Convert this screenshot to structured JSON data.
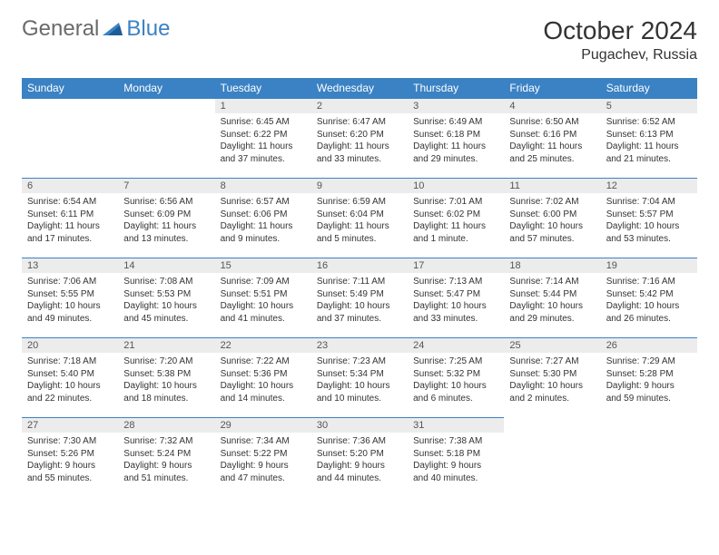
{
  "brand": {
    "part1": "General",
    "part2": "Blue"
  },
  "title": "October 2024",
  "location": "Pugachev, Russia",
  "colors": {
    "header_bg": "#3b82c4",
    "header_fg": "#ffffff",
    "daynum_bg": "#ececec",
    "text": "#333333",
    "logo_gray": "#6a6a6a",
    "logo_blue": "#3b82c4",
    "rule": "#3b82c4"
  },
  "layout": {
    "first_day_column": 2,
    "days_in_month": 31
  },
  "weekdays": [
    "Sunday",
    "Monday",
    "Tuesday",
    "Wednesday",
    "Thursday",
    "Friday",
    "Saturday"
  ],
  "days": [
    {
      "n": 1,
      "sunrise": "6:45 AM",
      "sunset": "6:22 PM",
      "daylight": "11 hours and 37 minutes."
    },
    {
      "n": 2,
      "sunrise": "6:47 AM",
      "sunset": "6:20 PM",
      "daylight": "11 hours and 33 minutes."
    },
    {
      "n": 3,
      "sunrise": "6:49 AM",
      "sunset": "6:18 PM",
      "daylight": "11 hours and 29 minutes."
    },
    {
      "n": 4,
      "sunrise": "6:50 AM",
      "sunset": "6:16 PM",
      "daylight": "11 hours and 25 minutes."
    },
    {
      "n": 5,
      "sunrise": "6:52 AM",
      "sunset": "6:13 PM",
      "daylight": "11 hours and 21 minutes."
    },
    {
      "n": 6,
      "sunrise": "6:54 AM",
      "sunset": "6:11 PM",
      "daylight": "11 hours and 17 minutes."
    },
    {
      "n": 7,
      "sunrise": "6:56 AM",
      "sunset": "6:09 PM",
      "daylight": "11 hours and 13 minutes."
    },
    {
      "n": 8,
      "sunrise": "6:57 AM",
      "sunset": "6:06 PM",
      "daylight": "11 hours and 9 minutes."
    },
    {
      "n": 9,
      "sunrise": "6:59 AM",
      "sunset": "6:04 PM",
      "daylight": "11 hours and 5 minutes."
    },
    {
      "n": 10,
      "sunrise": "7:01 AM",
      "sunset": "6:02 PM",
      "daylight": "11 hours and 1 minute."
    },
    {
      "n": 11,
      "sunrise": "7:02 AM",
      "sunset": "6:00 PM",
      "daylight": "10 hours and 57 minutes."
    },
    {
      "n": 12,
      "sunrise": "7:04 AM",
      "sunset": "5:57 PM",
      "daylight": "10 hours and 53 minutes."
    },
    {
      "n": 13,
      "sunrise": "7:06 AM",
      "sunset": "5:55 PM",
      "daylight": "10 hours and 49 minutes."
    },
    {
      "n": 14,
      "sunrise": "7:08 AM",
      "sunset": "5:53 PM",
      "daylight": "10 hours and 45 minutes."
    },
    {
      "n": 15,
      "sunrise": "7:09 AM",
      "sunset": "5:51 PM",
      "daylight": "10 hours and 41 minutes."
    },
    {
      "n": 16,
      "sunrise": "7:11 AM",
      "sunset": "5:49 PM",
      "daylight": "10 hours and 37 minutes."
    },
    {
      "n": 17,
      "sunrise": "7:13 AM",
      "sunset": "5:47 PM",
      "daylight": "10 hours and 33 minutes."
    },
    {
      "n": 18,
      "sunrise": "7:14 AM",
      "sunset": "5:44 PM",
      "daylight": "10 hours and 29 minutes."
    },
    {
      "n": 19,
      "sunrise": "7:16 AM",
      "sunset": "5:42 PM",
      "daylight": "10 hours and 26 minutes."
    },
    {
      "n": 20,
      "sunrise": "7:18 AM",
      "sunset": "5:40 PM",
      "daylight": "10 hours and 22 minutes."
    },
    {
      "n": 21,
      "sunrise": "7:20 AM",
      "sunset": "5:38 PM",
      "daylight": "10 hours and 18 minutes."
    },
    {
      "n": 22,
      "sunrise": "7:22 AM",
      "sunset": "5:36 PM",
      "daylight": "10 hours and 14 minutes."
    },
    {
      "n": 23,
      "sunrise": "7:23 AM",
      "sunset": "5:34 PM",
      "daylight": "10 hours and 10 minutes."
    },
    {
      "n": 24,
      "sunrise": "7:25 AM",
      "sunset": "5:32 PM",
      "daylight": "10 hours and 6 minutes."
    },
    {
      "n": 25,
      "sunrise": "7:27 AM",
      "sunset": "5:30 PM",
      "daylight": "10 hours and 2 minutes."
    },
    {
      "n": 26,
      "sunrise": "7:29 AM",
      "sunset": "5:28 PM",
      "daylight": "9 hours and 59 minutes."
    },
    {
      "n": 27,
      "sunrise": "7:30 AM",
      "sunset": "5:26 PM",
      "daylight": "9 hours and 55 minutes."
    },
    {
      "n": 28,
      "sunrise": "7:32 AM",
      "sunset": "5:24 PM",
      "daylight": "9 hours and 51 minutes."
    },
    {
      "n": 29,
      "sunrise": "7:34 AM",
      "sunset": "5:22 PM",
      "daylight": "9 hours and 47 minutes."
    },
    {
      "n": 30,
      "sunrise": "7:36 AM",
      "sunset": "5:20 PM",
      "daylight": "9 hours and 44 minutes."
    },
    {
      "n": 31,
      "sunrise": "7:38 AM",
      "sunset": "5:18 PM",
      "daylight": "9 hours and 40 minutes."
    }
  ],
  "labels": {
    "sunrise": "Sunrise:",
    "sunset": "Sunset:",
    "daylight": "Daylight:"
  }
}
